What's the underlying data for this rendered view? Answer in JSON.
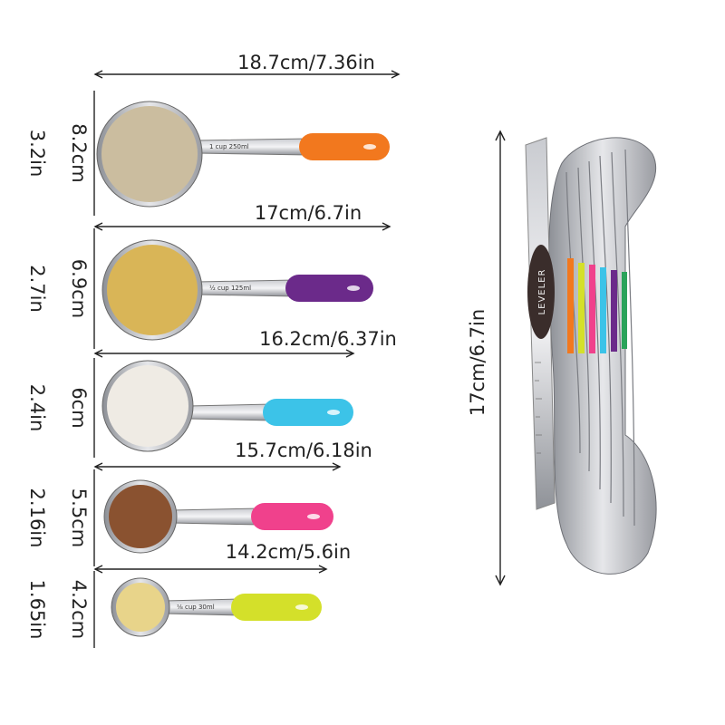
{
  "cups": [
    {
      "length": "18.7cm/7.36in",
      "height_cm": "8.2cm",
      "height_in": "3.2in",
      "label": "1 cup 250ml",
      "grip_color": "#f2781e",
      "content_color": "#cbbd9f"
    },
    {
      "length": "17cm/6.7in",
      "height_cm": "6.9cm",
      "height_in": "2.7in",
      "label": "½ cup 125ml",
      "grip_color": "#6b2a8a",
      "content_color": "#d9b557"
    },
    {
      "length": "16.2cm/6.37in",
      "height_cm": "6cm",
      "height_in": "2.4in",
      "grip_color": "#3cc3e8",
      "content_color": "#efebe4"
    },
    {
      "length": "15.7cm/6.18in",
      "height_cm": "5.5cm",
      "height_in": "2.16in",
      "grip_color": "#f0418c",
      "content_color": "#8a5230"
    },
    {
      "length": "14.2cm/5.6in",
      "height_cm": "4.2cm",
      "height_in": "1.65in",
      "label": "⅛ cup 30ml",
      "grip_color": "#d4e02a",
      "content_color": "#e8d48a"
    }
  ],
  "set": {
    "length": "17cm/6.7in",
    "leveler": "LEVELER"
  }
}
